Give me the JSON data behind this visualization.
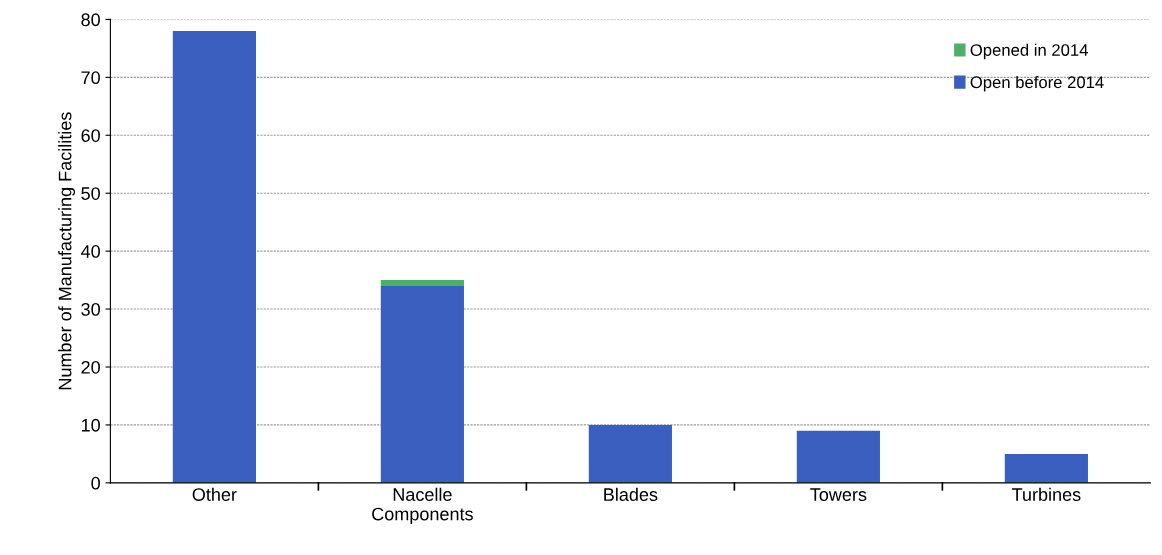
{
  "chart_data": {
    "type": "bar",
    "stacked": true,
    "ylabel": "Number of Manufacturing Facilities",
    "categories": [
      "Other",
      "Nacelle\nComponents",
      "Blades",
      "Towers",
      "Turbines"
    ],
    "series": [
      {
        "name": "Open before 2014",
        "color": "#3a5fbf",
        "values": [
          78,
          34,
          10,
          9,
          5
        ]
      },
      {
        "name": "Opened in 2014",
        "color": "#4caf6a",
        "values": [
          0,
          1,
          0,
          0,
          0
        ]
      }
    ],
    "ylim": [
      0,
      80
    ],
    "yticks": [
      0,
      10,
      20,
      30,
      40,
      50,
      60,
      70,
      80
    ],
    "grid": "y",
    "legend": "top right"
  }
}
